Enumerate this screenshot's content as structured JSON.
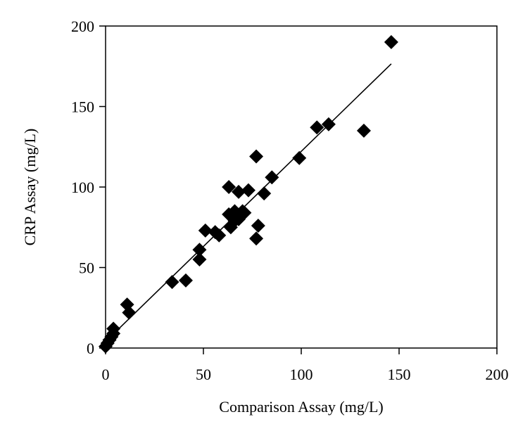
{
  "chart_data": {
    "type": "scatter",
    "title": "",
    "xlabel": "Comparison Assay (mg/L)",
    "ylabel": "CRP Assay (mg/L)",
    "xlim": [
      0,
      200
    ],
    "ylim": [
      0,
      200
    ],
    "x_ticks": [
      0,
      50,
      100,
      150,
      200
    ],
    "y_ticks": [
      0,
      50,
      100,
      150,
      200
    ],
    "grid": false,
    "legend": null,
    "marker": "diamond",
    "marker_color": "#000000",
    "series": [
      {
        "name": "samples",
        "points": [
          [
            0,
            1
          ],
          [
            1,
            3
          ],
          [
            2,
            5
          ],
          [
            3,
            7
          ],
          [
            4,
            9
          ],
          [
            4,
            12
          ],
          [
            11,
            27
          ],
          [
            12,
            22
          ],
          [
            34,
            41
          ],
          [
            41,
            42
          ],
          [
            48,
            55
          ],
          [
            48,
            61
          ],
          [
            51,
            73
          ],
          [
            56,
            72
          ],
          [
            58,
            70
          ],
          [
            63,
            83
          ],
          [
            64,
            75
          ],
          [
            66,
            79
          ],
          [
            66,
            85
          ],
          [
            68,
            80
          ],
          [
            70,
            85
          ],
          [
            71,
            84
          ],
          [
            63,
            100
          ],
          [
            68,
            97
          ],
          [
            73,
            98
          ],
          [
            81,
            96
          ],
          [
            85,
            106
          ],
          [
            77,
            119
          ],
          [
            77,
            68
          ],
          [
            78,
            76
          ],
          [
            99,
            118
          ],
          [
            108,
            137
          ],
          [
            114,
            139
          ],
          [
            132,
            135
          ],
          [
            146,
            190
          ]
        ]
      }
    ],
    "trendline": {
      "x": [
        0,
        146
      ],
      "y": [
        4,
        176.5
      ]
    }
  },
  "labels": {
    "xlabel": "Comparison Assay (mg/L)",
    "ylabel": "CRP Assay (mg/L)",
    "x_ticks": [
      "0",
      "50",
      "100",
      "150",
      "200"
    ],
    "y_ticks": [
      "0",
      "50",
      "100",
      "150",
      "200"
    ]
  }
}
